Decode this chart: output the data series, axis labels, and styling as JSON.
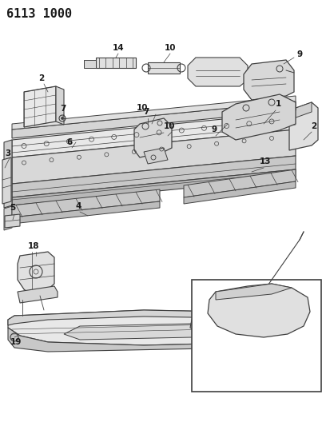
{
  "title": "6113 1000",
  "background_color": "#ffffff",
  "line_color": "#404040",
  "text_color": "#1a1a1a",
  "title_fontsize": 11,
  "label_fontsize": 7.5
}
